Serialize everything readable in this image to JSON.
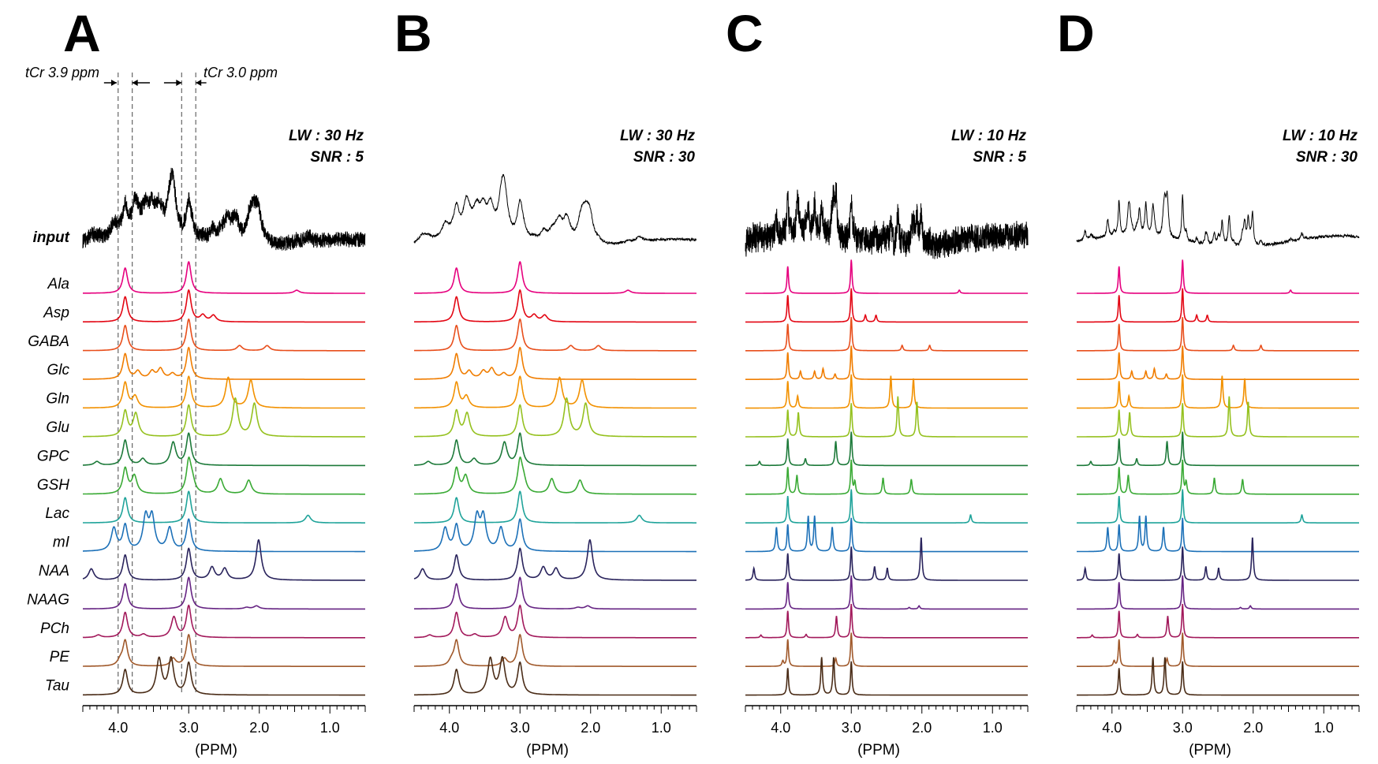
{
  "chart_data": [
    {
      "panel": "A",
      "type": "line",
      "title": "A",
      "conditions": {
        "lw": "LW : 30 Hz",
        "snr": "SNR : 5"
      },
      "linewidth_hz": 30,
      "snr": 5,
      "xlabel": "(PPM)",
      "xlim": [
        4.5,
        0.5
      ],
      "x_ticks": [
        4.0,
        3.0,
        2.0,
        1.0
      ],
      "x_tick_labels": [
        "4.0",
        "3.0",
        "2.0",
        "1.0"
      ],
      "series_labels": [
        "input",
        "Ala",
        "Asp",
        "GABA",
        "Glc",
        "Gln",
        "Glu",
        "GPC",
        "GSH",
        "Lac",
        "mI",
        "NAA",
        "NAAG",
        "PCh",
        "PE",
        "Tau"
      ]
    },
    {
      "panel": "B",
      "type": "line",
      "title": "B",
      "conditions": {
        "lw": "LW : 30 Hz",
        "snr": "SNR : 30"
      },
      "linewidth_hz": 30,
      "snr": 30,
      "xlabel": "(PPM)",
      "xlim": [
        4.5,
        0.5
      ],
      "x_ticks": [
        4.0,
        3.0,
        2.0,
        1.0
      ],
      "x_tick_labels": [
        "4.0",
        "3.0",
        "2.0",
        "1.0"
      ],
      "series_labels": [
        "input",
        "Ala",
        "Asp",
        "GABA",
        "Glc",
        "Gln",
        "Glu",
        "GPC",
        "GSH",
        "Lac",
        "mI",
        "NAA",
        "NAAG",
        "PCh",
        "PE",
        "Tau"
      ]
    },
    {
      "panel": "C",
      "type": "line",
      "title": "C",
      "conditions": {
        "lw": "LW : 10 Hz",
        "snr": "SNR : 5"
      },
      "linewidth_hz": 10,
      "snr": 5,
      "xlabel": "(PPM)",
      "xlim": [
        4.5,
        0.5
      ],
      "x_ticks": [
        4.0,
        3.0,
        2.0,
        1.0
      ],
      "x_tick_labels": [
        "4.0",
        "3.0",
        "2.0",
        "1.0"
      ],
      "series_labels": [
        "input",
        "Ala",
        "Asp",
        "GABA",
        "Glc",
        "Gln",
        "Glu",
        "GPC",
        "GSH",
        "Lac",
        "mI",
        "NAA",
        "NAAG",
        "PCh",
        "PE",
        "Tau"
      ]
    },
    {
      "panel": "D",
      "type": "line",
      "title": "D",
      "conditions": {
        "lw": "LW : 10 Hz",
        "snr": "SNR : 30"
      },
      "linewidth_hz": 10,
      "snr": 30,
      "xlabel": "(PPM)",
      "xlim": [
        4.5,
        0.5
      ],
      "x_ticks": [
        4.0,
        3.0,
        2.0,
        1.0
      ],
      "x_tick_labels": [
        "4.0",
        "3.0",
        "2.0",
        "1.0"
      ],
      "series_labels": [
        "input",
        "Ala",
        "Asp",
        "GABA",
        "Glc",
        "Gln",
        "Glu",
        "GPC",
        "GSH",
        "Lac",
        "mI",
        "NAA",
        "NAAG",
        "PCh",
        "PE",
        "Tau"
      ]
    }
  ],
  "metabolites": [
    {
      "name": "Ala",
      "color": "#e6007e",
      "peaks": [
        [
          1.47,
          0.12
        ]
      ]
    },
    {
      "name": "Asp",
      "color": "#e30613",
      "peaks": [
        [
          2.8,
          0.25
        ],
        [
          2.65,
          0.25
        ]
      ]
    },
    {
      "name": "GABA",
      "color": "#e84e1b",
      "peaks": [
        [
          2.28,
          0.2
        ],
        [
          1.89,
          0.2
        ]
      ]
    },
    {
      "name": "Glc",
      "color": "#f07d00",
      "peaks": [
        [
          3.72,
          0.3
        ],
        [
          3.52,
          0.3
        ],
        [
          3.4,
          0.4
        ],
        [
          3.23,
          0.2
        ]
      ]
    },
    {
      "name": "Gln",
      "color": "#f29100",
      "peaks": [
        [
          3.76,
          0.45
        ],
        [
          2.44,
          1.2
        ],
        [
          2.12,
          1.1
        ]
      ]
    },
    {
      "name": "Glu",
      "color": "#95c11f",
      "peaks": [
        [
          3.75,
          0.9
        ],
        [
          2.34,
          1.5
        ],
        [
          2.07,
          1.3
        ]
      ]
    },
    {
      "name": "GPC",
      "color": "#1d7a3a",
      "peaks": [
        [
          4.3,
          0.15
        ],
        [
          3.65,
          0.25
        ],
        [
          3.22,
          0.9
        ]
      ]
    },
    {
      "name": "GSH",
      "color": "#3aaa35",
      "peaks": [
        [
          3.77,
          0.7
        ],
        [
          2.95,
          0.45
        ],
        [
          2.55,
          0.6
        ],
        [
          2.15,
          0.55
        ]
      ]
    },
    {
      "name": "Lac",
      "color": "#1fa39a",
      "peaks": [
        [
          1.31,
          0.3
        ]
      ]
    },
    {
      "name": "mI",
      "color": "#1d71b8",
      "peaks": [
        [
          4.06,
          0.9
        ],
        [
          3.61,
          1.3
        ],
        [
          3.52,
          1.3
        ],
        [
          3.27,
          0.9
        ]
      ]
    },
    {
      "name": "NAA",
      "color": "#29235c",
      "peaks": [
        [
          4.38,
          0.45
        ],
        [
          2.67,
          0.5
        ],
        [
          2.49,
          0.45
        ],
        [
          2.01,
          1.6
        ]
      ]
    },
    {
      "name": "NAAG",
      "color": "#662483",
      "peaks": [
        [
          2.04,
          0.12
        ],
        [
          2.18,
          0.06
        ]
      ]
    },
    {
      "name": "PCh",
      "color": "#a2195b",
      "peaks": [
        [
          4.28,
          0.1
        ],
        [
          3.64,
          0.12
        ],
        [
          3.21,
          0.8
        ]
      ]
    },
    {
      "name": "PE",
      "color": "#a0592b",
      "peaks": [
        [
          3.97,
          0.2
        ],
        [
          3.22,
          0.3
        ]
      ]
    },
    {
      "name": "Tau",
      "color": "#4a2c17",
      "peaks": [
        [
          3.42,
          1.4
        ],
        [
          3.25,
          1.4
        ]
      ]
    }
  ],
  "reference_peaks": {
    "cr39_label": "tCr 3.9 ppm",
    "cr39_ppm": 3.9,
    "cr30_label": "tCr 3.0 ppm",
    "cr30_ppm": 3.0
  }
}
